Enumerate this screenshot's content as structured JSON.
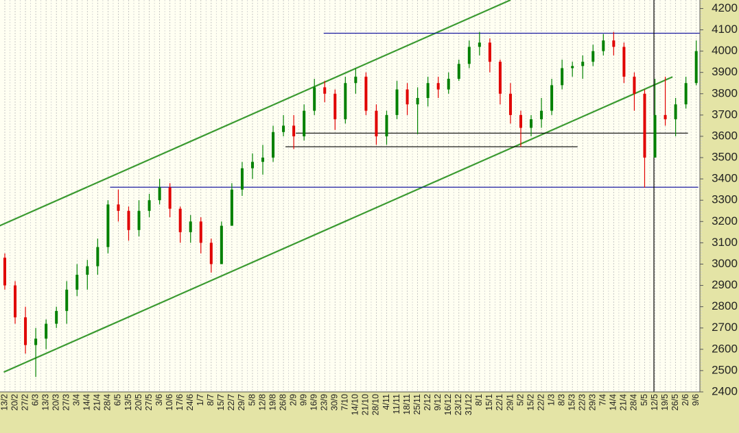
{
  "chart_data": {
    "type": "candlestick",
    "categories": [
      "13/2",
      "20/2",
      "27/2",
      "6/3",
      "13/3",
      "20/3",
      "27/3",
      "3/4",
      "14/4",
      "21/4",
      "28/4",
      "6/5",
      "13/5",
      "20/5",
      "27/5",
      "3/6",
      "10/6",
      "17/6",
      "24/6",
      "1/7",
      "8/7",
      "15/7",
      "22/7",
      "29/7",
      "5/8",
      "12/8",
      "19/8",
      "26/8",
      "2/9",
      "9/9",
      "16/9",
      "23/9",
      "30/9",
      "7/10",
      "14/10",
      "21/10",
      "28/10",
      "4/11",
      "11/11",
      "18/11",
      "25/11",
      "2/12",
      "9/12",
      "16/12",
      "23/12",
      "31/12",
      "8/1",
      "15/1",
      "22/1",
      "29/1",
      "5/2",
      "15/2",
      "22/2",
      "1/3",
      "8/3",
      "15/3",
      "22/3",
      "29/3",
      "7/4",
      "14/4",
      "21/4",
      "28/4",
      "5/5",
      "12/5",
      "19/5",
      "26/5",
      "2/6",
      "9/6"
    ],
    "open": [
      3030,
      2900,
      2750,
      2620,
      2650,
      2720,
      2780,
      2880,
      2950,
      2990,
      3080,
      3280,
      3250,
      3160,
      3250,
      3300,
      3360,
      3260,
      3150,
      3200,
      3100,
      3000,
      3180,
      3350,
      3450,
      3480,
      3500,
      3620,
      3650,
      3600,
      3720,
      3830,
      3800,
      3680,
      3850,
      3880,
      3720,
      3600,
      3700,
      3820,
      3750,
      3780,
      3850,
      3820,
      3870,
      3940,
      4020,
      4040,
      3950,
      3800,
      3700,
      3640,
      3680,
      3720,
      3840,
      3920,
      3930,
      3950,
      4000,
      4050,
      4020,
      3880,
      3800,
      3500,
      3700,
      3680,
      3750,
      3850
    ],
    "high": [
      3050,
      2920,
      2800,
      2700,
      2740,
      2800,
      2920,
      3000,
      3020,
      3120,
      3300,
      3350,
      3270,
      3300,
      3330,
      3400,
      3380,
      3270,
      3230,
      3220,
      3120,
      3200,
      3380,
      3480,
      3520,
      3560,
      3650,
      3700,
      3700,
      3750,
      3870,
      3860,
      3820,
      3880,
      3920,
      3900,
      3750,
      3720,
      3860,
      3850,
      3830,
      3880,
      3880,
      3900,
      3960,
      4050,
      4090,
      4060,
      3960,
      3850,
      3720,
      3700,
      3780,
      3870,
      3960,
      3950,
      3980,
      4030,
      4080,
      4090,
      4040,
      3900,
      3820,
      3870,
      3880,
      3780,
      3880,
      4050
    ],
    "low": [
      2880,
      2720,
      2580,
      2470,
      2600,
      2700,
      2720,
      2850,
      2880,
      2950,
      3050,
      3200,
      3110,
      3130,
      3220,
      3280,
      3220,
      3100,
      3100,
      3050,
      2960,
      3000,
      3180,
      3320,
      3400,
      3420,
      3480,
      3600,
      3540,
      3580,
      3700,
      3760,
      3630,
      3660,
      3800,
      3700,
      3560,
      3560,
      3680,
      3700,
      3610,
      3740,
      3780,
      3800,
      3860,
      3920,
      3980,
      3900,
      3750,
      3660,
      3550,
      3600,
      3640,
      3700,
      3820,
      3880,
      3870,
      3930,
      3980,
      3980,
      3850,
      3720,
      3360,
      3500,
      3650,
      3600,
      3730,
      3840
    ],
    "close": [
      2900,
      2750,
      2620,
      2650,
      2720,
      2780,
      2880,
      2950,
      2990,
      3080,
      3280,
      3250,
      3160,
      3250,
      3300,
      3360,
      3260,
      3150,
      3200,
      3100,
      3000,
      3180,
      3350,
      3450,
      3480,
      3500,
      3620,
      3650,
      3600,
      3720,
      3830,
      3800,
      3680,
      3850,
      3880,
      3720,
      3600,
      3700,
      3820,
      3750,
      3780,
      3850,
      3820,
      3870,
      3940,
      4020,
      4040,
      3950,
      3800,
      3700,
      3640,
      3680,
      3720,
      3840,
      3920,
      3930,
      3950,
      4000,
      4050,
      4020,
      3880,
      3800,
      3500,
      3700,
      3680,
      3750,
      3850,
      4000
    ],
    "up_color": "#008000",
    "down_color": "#e00000",
    "ylim": [
      2400,
      4240
    ],
    "yticks": [
      2400,
      2500,
      2600,
      2700,
      2800,
      2900,
      3000,
      3100,
      3200,
      3300,
      3400,
      3500,
      3600,
      3700,
      3800,
      3900,
      4000,
      4100,
      4200
    ],
    "grid": true,
    "reference_lines": [
      {
        "x": [
          -0.5,
          49
        ],
        "y": [
          3180,
          4240
        ],
        "color": "#3a9a30"
      },
      {
        "x": [
          -0.1,
          64.7
        ],
        "y": [
          2493,
          3879
        ],
        "color": "#3a9a30"
      },
      {
        "x": [
          30.9,
          68.2
        ],
        "y": [
          4084,
          4084
        ],
        "color": "#1a1aa0"
      },
      {
        "x": [
          10.2,
          67.2
        ],
        "y": [
          3361,
          3361
        ],
        "color": "#1a1aa0"
      },
      {
        "x": [
          28.2,
          66.2
        ],
        "y": [
          3615,
          3615
        ],
        "color": "#000000"
      },
      {
        "x": [
          27.2,
          55.5
        ],
        "y": [
          3551,
          3551
        ],
        "color": "#000000"
      },
      {
        "x": [
          62.9,
          62.9
        ],
        "y": [
          2400,
          4240
        ],
        "color": "#000000"
      }
    ]
  }
}
